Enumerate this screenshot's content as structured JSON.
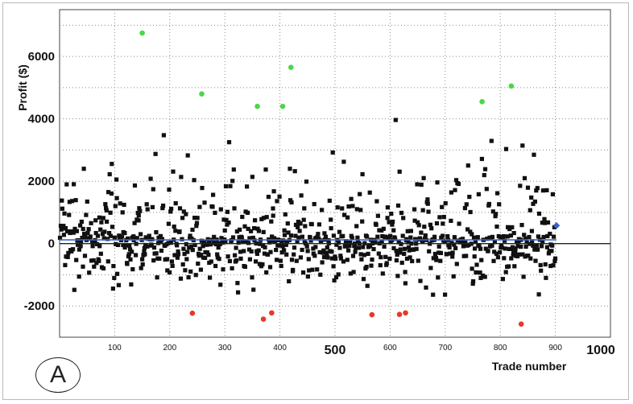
{
  "panel_label": "A",
  "chart_data": {
    "type": "scatter",
    "title": "",
    "xlabel": "Trade number",
    "ylabel": "Profit ($)",
    "xlim": [
      0,
      1000
    ],
    "ylim": [
      -3000,
      7500
    ],
    "x_ticks_small": [
      100,
      200,
      300,
      400,
      600,
      700,
      800,
      900
    ],
    "x_ticks_big": [
      500,
      1000
    ],
    "y_ticks": [
      -2000,
      0,
      2000,
      4000,
      6000
    ],
    "grid": true,
    "colors": {
      "trades": "#111111",
      "large_wins": "#4cd64c",
      "large_losses": "#e8382a",
      "last_trade": "#3a5fc8",
      "mean_line": "#3f66c8",
      "zero_line": "#222222"
    },
    "mean_profit": 120,
    "series": [
      {
        "name": "",
        "points": [
          [
            150,
            6750
          ],
          [
            258,
            4800
          ],
          [
            359,
            4400
          ],
          [
            405,
            4400
          ],
          [
            420,
            5650
          ],
          [
            767,
            4550
          ],
          [
            820,
            5050
          ]
        ]
      },
      {
        "name": "",
        "points": [
          [
            241,
            -2230
          ],
          [
            370,
            -2420
          ],
          [
            385,
            -2220
          ],
          [
            567,
            -2280
          ],
          [
            617,
            -2270
          ],
          [
            628,
            -2220
          ],
          [
            838,
            -2580
          ]
        ]
      },
      {
        "name": "",
        "points": [
          [
            902,
            580
          ]
        ]
      }
    ]
  }
}
